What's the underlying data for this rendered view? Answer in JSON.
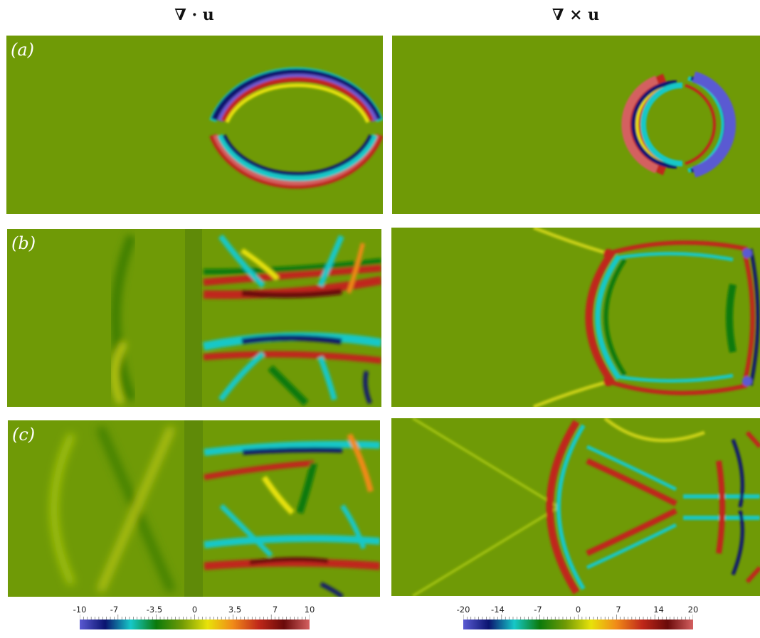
{
  "headers": {
    "left": "∇ · u",
    "right": "∇ × u"
  },
  "panels": {
    "a": {
      "label": "(a)"
    },
    "b": {
      "label": "(b)"
    },
    "c": {
      "label": "(c)"
    }
  },
  "colorbars": {
    "left": {
      "tick_labels": [
        "-10",
        "-7",
        "-3.5",
        "0",
        "3.5",
        "7",
        "10"
      ],
      "tick_values": [
        -10,
        -7,
        -3.5,
        0,
        3.5,
        7,
        10
      ],
      "range": [
        -10,
        10
      ]
    },
    "right": {
      "tick_labels": [
        "-20",
        "-14",
        "-7",
        "0",
        "7",
        "14",
        "20"
      ],
      "tick_values": [
        -20,
        -14,
        -7,
        0,
        7,
        14,
        20
      ],
      "range": [
        -20,
        20
      ]
    }
  },
  "colormap": [
    "#5a5ad2",
    "#0a1470",
    "#16c8c8",
    "#0b7a0b",
    "#6f9a06",
    "#e8e20a",
    "#f08a18",
    "#c0281a",
    "#6a0a0a",
    "#d46060"
  ]
}
